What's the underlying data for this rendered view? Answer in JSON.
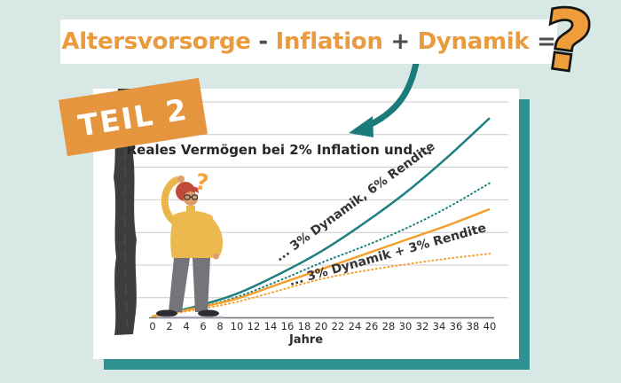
{
  "header": {
    "title_segments": [
      {
        "text": "Altersvorsorge",
        "color": "#ea9b3d"
      },
      {
        "text": " - ",
        "color": "#4d4d4d"
      },
      {
        "text": "Inflation",
        "color": "#ea9b3d"
      },
      {
        "text": " + ",
        "color": "#4d4d4d"
      },
      {
        "text": "Dynamik",
        "color": "#ea9b3d"
      },
      {
        "text": " =",
        "color": "#4d4d4d"
      }
    ],
    "question_mark": "?"
  },
  "badge": {
    "label": "TEIL 2"
  },
  "illustration": {
    "person_question_mark": "?"
  },
  "chart_data": {
    "type": "line",
    "title": "Reales Vermögen bei 2% Inflation und ...",
    "xlabel": "Jahre",
    "ylabel": "",
    "x_range": [
      0,
      40
    ],
    "x_ticks": [
      "0",
      "2",
      "4",
      "6",
      "8",
      "10",
      "12",
      "14",
      "16",
      "18",
      "20",
      "22",
      "24",
      "26",
      "28",
      "30",
      "32",
      "34",
      "36",
      "38",
      "40"
    ],
    "y_axis_note": "y-axis unlabeled; values in gridline units read from plot",
    "grid": "horizontal",
    "legend_position": "inline rotated labels along curves",
    "x": [
      0,
      5,
      10,
      15,
      20,
      25,
      30,
      35,
      40
    ],
    "series": [
      {
        "name": "... 3% Dynamik, 6% Rendite",
        "color": "teal",
        "style": "solid",
        "values": [
          0,
          0.3,
          0.7,
          1.3,
          2.0,
          2.85,
          3.8,
          4.9,
          6.1
        ]
      },
      {
        "name": "... 3% Dynamik, 6% Rendite",
        "color": "teal",
        "style": "dotted",
        "values": [
          0,
          0.25,
          0.6,
          1.1,
          1.65,
          2.15,
          2.7,
          3.35,
          4.1
        ]
      },
      {
        "name": "... 3% Dynamik + 3% Rendite",
        "color": "orange",
        "style": "solid",
        "values": [
          0,
          0.25,
          0.55,
          1.0,
          1.45,
          1.9,
          2.35,
          2.8,
          3.3
        ]
      },
      {
        "name": "... 3% Dynamik + 3% Rendite",
        "color": "orange",
        "style": "dotted",
        "values": [
          0,
          0.2,
          0.45,
          0.8,
          1.15,
          1.4,
          1.6,
          1.78,
          1.93
        ]
      }
    ],
    "annotations": [
      {
        "text": "... 3% Dynamik, 6% Rendite",
        "rotation_deg": -36
      },
      {
        "text": "... 3% Dynamik + 3% Rendite",
        "rotation_deg": -16
      }
    ]
  },
  "colors": {
    "background": "#d8e8e4",
    "accent_orange": "#ea9b3d",
    "curve_orange": "#f5a02c",
    "teal": "#1e7f7f",
    "teal_shadow_card": "#2f9192",
    "dark_text": "#3a3a3a",
    "grid": "#cbcbcb",
    "brush": "#3d3d3d"
  }
}
